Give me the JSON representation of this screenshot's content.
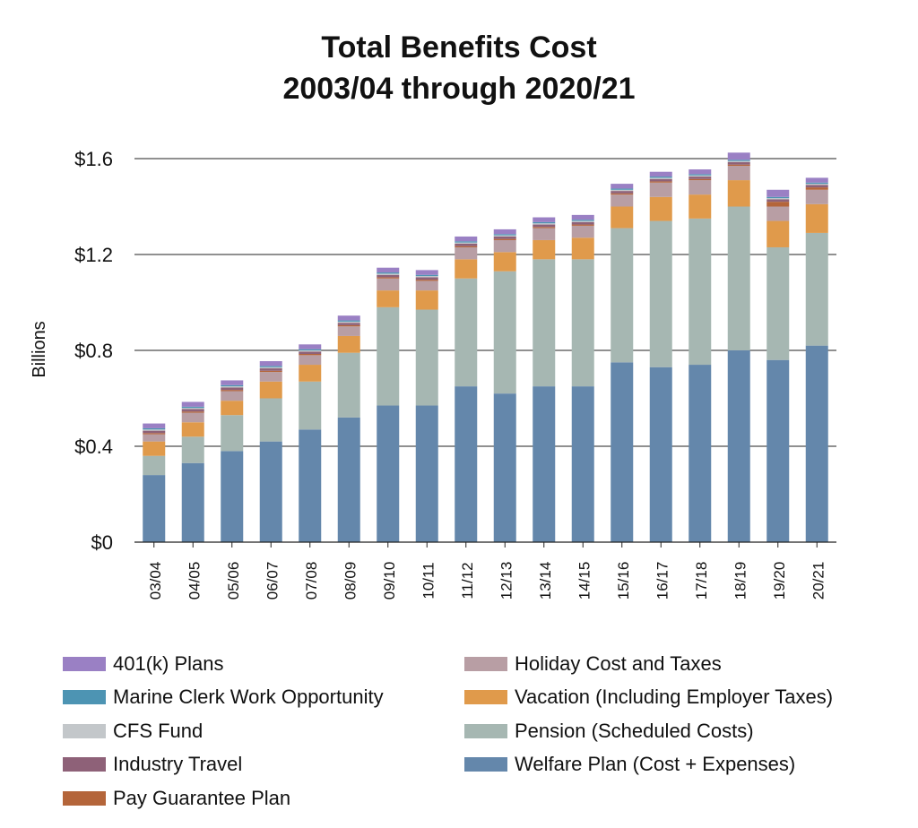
{
  "chart_data": {
    "type": "bar",
    "stacked": true,
    "title": "Total Benefits Cost",
    "subtitle": "2003/04 through 2020/21",
    "xlabel": "",
    "ylabel": "Billions",
    "ylim": [
      0,
      1.6
    ],
    "yticks": [
      0,
      0.4,
      0.8,
      1.2,
      1.6
    ],
    "ytick_labels": [
      "$0",
      "$0.4",
      "$0.8",
      "$1.2",
      "$1.6"
    ],
    "grid": true,
    "categories": [
      "03/04",
      "04/05",
      "05/06",
      "06/07",
      "07/08",
      "08/09",
      "09/10",
      "10/11",
      "11/12",
      "12/13",
      "13/14",
      "14/15",
      "15/16",
      "16/17",
      "17/18",
      "18/19",
      "19/20",
      "20/21"
    ],
    "series": [
      {
        "name": "Welfare Plan (Cost + Expenses)",
        "color": "#6487ab",
        "values": [
          0.28,
          0.33,
          0.38,
          0.42,
          0.47,
          0.52,
          0.57,
          0.57,
          0.65,
          0.62,
          0.65,
          0.65,
          0.75,
          0.73,
          0.74,
          0.8,
          0.76,
          0.82
        ]
      },
      {
        "name": "Pension (Scheduled Costs)",
        "color": "#a6b7b2",
        "values": [
          0.08,
          0.11,
          0.15,
          0.18,
          0.2,
          0.27,
          0.41,
          0.4,
          0.45,
          0.51,
          0.53,
          0.53,
          0.56,
          0.61,
          0.61,
          0.6,
          0.47,
          0.47
        ]
      },
      {
        "name": "Vacation (Including Employer Taxes)",
        "color": "#e09a4b",
        "values": [
          0.06,
          0.06,
          0.06,
          0.07,
          0.07,
          0.07,
          0.07,
          0.08,
          0.08,
          0.08,
          0.08,
          0.09,
          0.09,
          0.1,
          0.1,
          0.11,
          0.11,
          0.12
        ]
      },
      {
        "name": "Holiday Cost and Taxes",
        "color": "#b89ea4",
        "values": [
          0.03,
          0.04,
          0.04,
          0.04,
          0.04,
          0.04,
          0.05,
          0.04,
          0.05,
          0.05,
          0.05,
          0.05,
          0.05,
          0.06,
          0.06,
          0.06,
          0.06,
          0.06
        ]
      },
      {
        "name": "Pay Guarantee Plan",
        "color": "#b4653a",
        "values": [
          0.005,
          0.005,
          0.005,
          0.005,
          0.005,
          0.005,
          0.005,
          0.005,
          0.005,
          0.005,
          0.005,
          0.005,
          0.005,
          0.005,
          0.005,
          0.005,
          0.02,
          0.01
        ]
      },
      {
        "name": "Industry Travel",
        "color": "#8e6178",
        "values": [
          0.01,
          0.01,
          0.01,
          0.01,
          0.01,
          0.01,
          0.01,
          0.01,
          0.01,
          0.01,
          0.01,
          0.01,
          0.01,
          0.01,
          0.01,
          0.01,
          0.01,
          0.01
        ]
      },
      {
        "name": "CFS Fund",
        "color": "#c3c7ca",
        "values": [
          0.005,
          0.005,
          0.005,
          0.005,
          0.005,
          0.005,
          0.005,
          0.005,
          0.005,
          0.005,
          0.005,
          0.005,
          0.005,
          0.005,
          0.005,
          0.005,
          0.005,
          0.005
        ]
      },
      {
        "name": "Marine Clerk Work Opportunity",
        "color": "#4d94b3",
        "values": [
          0.005,
          0.005,
          0.005,
          0.005,
          0.005,
          0.005,
          0.005,
          0.005,
          0.005,
          0.005,
          0.005,
          0.005,
          0.005,
          0.005,
          0.005,
          0.005,
          0.005,
          0.005
        ]
      },
      {
        "name": "401(k) Plans",
        "color": "#9a80c4",
        "values": [
          0.02,
          0.02,
          0.02,
          0.02,
          0.02,
          0.02,
          0.02,
          0.02,
          0.02,
          0.02,
          0.02,
          0.02,
          0.02,
          0.02,
          0.02,
          0.03,
          0.03,
          0.02
        ]
      }
    ],
    "legend": {
      "placement": "bottom",
      "left": [
        "401(k) Plans",
        "Marine Clerk Work Opportunity",
        "CFS Fund",
        "Industry Travel",
        "Pay Guarantee Plan"
      ],
      "right": [
        "Holiday Cost and Taxes",
        "Vacation (Including Employer Taxes)",
        "Pension (Scheduled Costs)",
        "Welfare Plan (Cost + Expenses)"
      ]
    }
  }
}
